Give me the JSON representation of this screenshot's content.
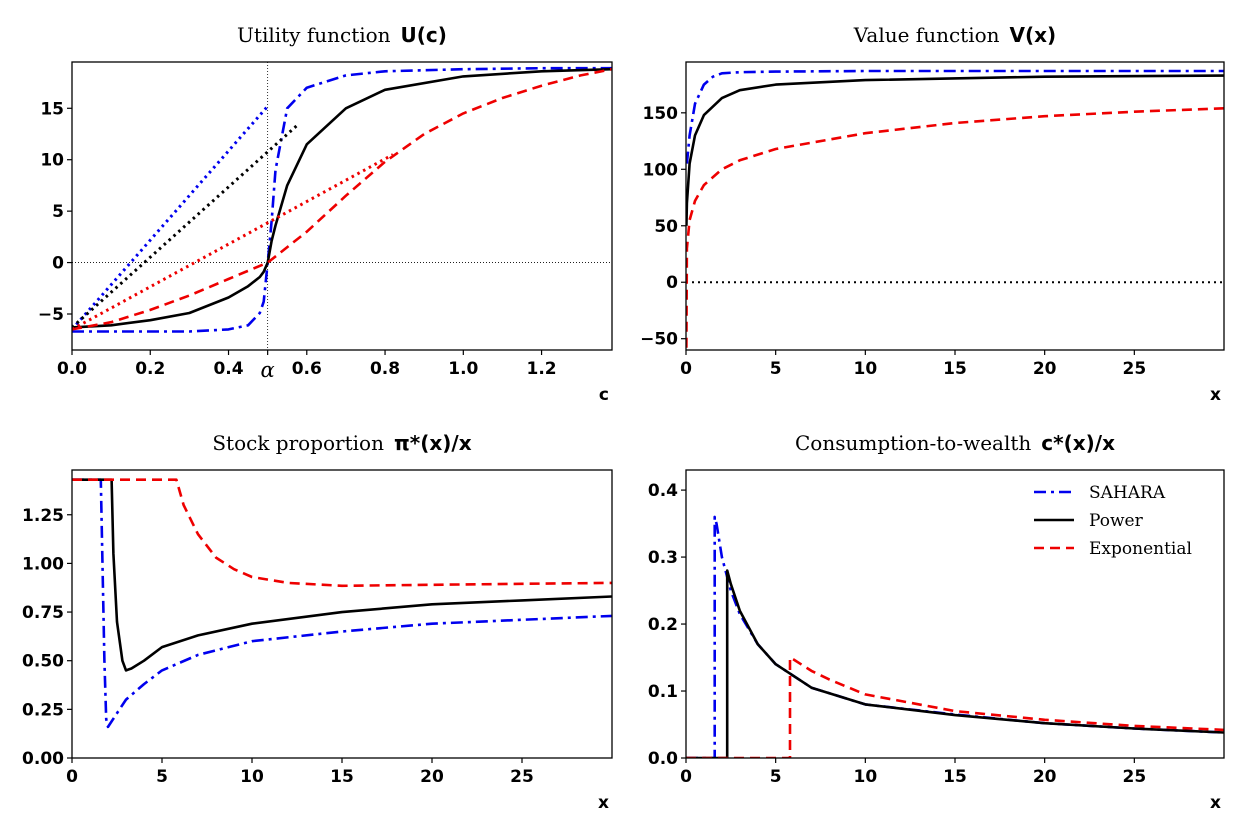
{
  "colors": {
    "SAHARA": "#0000ee",
    "Power": "#000000",
    "Exponential": "#ee0000"
  },
  "chart_data": [
    {
      "type": "line",
      "title": "Utility function",
      "title_math": "U(c)",
      "xlabel": "c",
      "xlim": [
        0,
        1.38
      ],
      "ylim": [
        -8.5,
        19.5
      ],
      "xticks": [
        0.0,
        0.2,
        0.4,
        0.6,
        0.8,
        1.0,
        1.2
      ],
      "xtick_labels": [
        "0.0",
        "0.2",
        "0.4",
        "0.6",
        "0.8",
        "1.0",
        "1.2"
      ],
      "yticks": [
        -5,
        0,
        5,
        10,
        15
      ],
      "ytick_labels": [
        "−5",
        "0",
        "5",
        "10",
        "15"
      ],
      "special_xtick": {
        "x": 0.5,
        "label": "α"
      },
      "reference_lines": [
        {
          "axis": "h",
          "value": 0
        },
        {
          "axis": "v",
          "value": 0.5
        }
      ],
      "series": [
        {
          "name": "SAHARA",
          "style": "dashdot",
          "x": [
            0,
            0.1,
            0.2,
            0.3,
            0.4,
            0.45,
            0.48,
            0.49,
            0.5,
            0.51,
            0.52,
            0.55,
            0.6,
            0.7,
            0.8,
            1.0,
            1.2,
            1.38
          ],
          "y": [
            -6.7,
            -6.7,
            -6.7,
            -6.7,
            -6.5,
            -6.1,
            -4.9,
            -3.8,
            0,
            4.0,
            9.0,
            15.0,
            17.0,
            18.2,
            18.6,
            18.8,
            18.9,
            18.9
          ]
        },
        {
          "name": "Power",
          "style": "solid",
          "x": [
            0,
            0.1,
            0.2,
            0.3,
            0.4,
            0.45,
            0.48,
            0.49,
            0.5,
            0.51,
            0.52,
            0.55,
            0.6,
            0.7,
            0.8,
            1.0,
            1.2,
            1.38
          ],
          "y": [
            -6.3,
            -6.1,
            -5.6,
            -4.9,
            -3.4,
            -2.3,
            -1.4,
            -0.9,
            0,
            2.1,
            3.6,
            7.5,
            11.5,
            15.0,
            16.8,
            18.1,
            18.6,
            18.8
          ]
        },
        {
          "name": "Exponential",
          "style": "dashed",
          "x": [
            0,
            0.1,
            0.2,
            0.3,
            0.4,
            0.5,
            0.6,
            0.7,
            0.8,
            0.9,
            1.0,
            1.1,
            1.2,
            1.3,
            1.38
          ],
          "y": [
            -6.5,
            -5.8,
            -4.6,
            -3.2,
            -1.6,
            0,
            3.0,
            6.5,
            9.8,
            12.5,
            14.5,
            16.0,
            17.2,
            18.2,
            18.8
          ]
        },
        {
          "name": "SAHARA tangent",
          "style": "dotted",
          "color_of": "SAHARA",
          "x": [
            0,
            0.5
          ],
          "y": [
            -6.5,
            15.2
          ]
        },
        {
          "name": "Power tangent",
          "style": "dotted",
          "color_of": "Power",
          "x": [
            0,
            0.58
          ],
          "y": [
            -6.3,
            13.5
          ]
        },
        {
          "name": "Exponential tangent",
          "style": "dotted",
          "color_of": "Exponential",
          "x": [
            0,
            0.82
          ],
          "y": [
            -6.5,
            10.5
          ]
        }
      ]
    },
    {
      "type": "line",
      "title": "Value function",
      "title_math": "V(x)",
      "xlabel": "x",
      "xlim": [
        0,
        30
      ],
      "ylim": [
        -60,
        195
      ],
      "xticks": [
        0,
        5,
        10,
        15,
        20,
        25
      ],
      "xtick_labels": [
        "0",
        "5",
        "10",
        "15",
        "20",
        "25"
      ],
      "yticks": [
        -50,
        0,
        50,
        100,
        150
      ],
      "ytick_labels": [
        "−50",
        "0",
        "50",
        "100",
        "150"
      ],
      "reference_lines": [
        {
          "axis": "h",
          "value": 0,
          "style": "dotted"
        }
      ],
      "series": [
        {
          "name": "SAHARA",
          "style": "dashdot",
          "x": [
            0.05,
            0.2,
            0.5,
            1,
            1.5,
            2,
            3,
            5,
            10,
            20,
            30
          ],
          "y": [
            105,
            130,
            158,
            175,
            182,
            185,
            186,
            186.5,
            187,
            187,
            187
          ]
        },
        {
          "name": "Power",
          "style": "solid",
          "x": [
            0.02,
            0.05,
            0.2,
            0.5,
            1,
            2,
            3,
            5,
            10,
            20,
            30
          ],
          "y": [
            50,
            70,
            105,
            130,
            148,
            163,
            170,
            175,
            179,
            182,
            183
          ]
        },
        {
          "name": "Exponential",
          "style": "dashed",
          "x": [
            0.02,
            0.05,
            0.2,
            0.5,
            1,
            2,
            3,
            5,
            10,
            15,
            20,
            25,
            30
          ],
          "y": [
            -58,
            30,
            55,
            72,
            86,
            100,
            108,
            118,
            132,
            141,
            147,
            151,
            154
          ]
        }
      ]
    },
    {
      "type": "line",
      "title": "Stock proportion",
      "title_math": "π*(x)/x",
      "xlabel": "x",
      "xlim": [
        0,
        30
      ],
      "ylim": [
        0,
        1.48
      ],
      "xticks": [
        0,
        5,
        10,
        15,
        20,
        25
      ],
      "xtick_labels": [
        "0",
        "5",
        "10",
        "15",
        "20",
        "25"
      ],
      "yticks": [
        0,
        0.25,
        0.5,
        0.75,
        1.0,
        1.25
      ],
      "ytick_labels": [
        "0.00",
        "0.25",
        "0.50",
        "0.75",
        "1.00",
        "1.25"
      ],
      "series": [
        {
          "name": "SAHARA",
          "style": "dashdot",
          "x": [
            0,
            1.6,
            1.65,
            1.8,
            1.9,
            2.0,
            2.5,
            3,
            4,
            5,
            7,
            10,
            15,
            20,
            25,
            30
          ],
          "y": [
            1.43,
            1.43,
            1.2,
            0.5,
            0.2,
            0.16,
            0.23,
            0.3,
            0.38,
            0.45,
            0.53,
            0.6,
            0.65,
            0.69,
            0.71,
            0.73
          ]
        },
        {
          "name": "Power",
          "style": "solid",
          "x": [
            0,
            2.2,
            2.3,
            2.5,
            2.8,
            3.0,
            3.3,
            4,
            5,
            7,
            10,
            15,
            20,
            25,
            30
          ],
          "y": [
            1.43,
            1.43,
            1.05,
            0.7,
            0.5,
            0.45,
            0.46,
            0.5,
            0.57,
            0.63,
            0.69,
            0.75,
            0.79,
            0.81,
            0.83
          ]
        },
        {
          "name": "Exponential",
          "style": "dashed",
          "x": [
            0,
            5.8,
            6.2,
            7,
            8,
            9,
            10,
            12,
            15,
            20,
            25,
            30
          ],
          "y": [
            1.43,
            1.43,
            1.3,
            1.15,
            1.03,
            0.97,
            0.93,
            0.9,
            0.885,
            0.89,
            0.895,
            0.9
          ]
        }
      ]
    },
    {
      "type": "line",
      "title": "Consumption-to-wealth",
      "title_math": "c*(x)/x",
      "xlabel": "x",
      "xlim": [
        0,
        30
      ],
      "ylim": [
        0,
        0.43
      ],
      "xticks": [
        0,
        5,
        10,
        15,
        20,
        25
      ],
      "xtick_labels": [
        "0",
        "5",
        "10",
        "15",
        "20",
        "25"
      ],
      "yticks": [
        0,
        0.1,
        0.2,
        0.3,
        0.4
      ],
      "ytick_labels": [
        "0.0",
        "0.1",
        "0.2",
        "0.3",
        "0.4"
      ],
      "legend": {
        "placement": "top-right",
        "entries": [
          "SAHARA",
          "Power",
          "Exponential"
        ]
      },
      "series": [
        {
          "name": "SAHARA",
          "style": "dashdot",
          "x": [
            0,
            1.6,
            1.6,
            1.7,
            2.0,
            2.5,
            3,
            4,
            5,
            7,
            10,
            15,
            20,
            25,
            30
          ],
          "y": [
            0,
            0,
            0.36,
            0.35,
            0.3,
            0.25,
            0.215,
            0.17,
            0.14,
            0.105,
            0.08,
            0.065,
            0.052,
            0.044,
            0.038
          ]
        },
        {
          "name": "Power",
          "style": "solid",
          "x": [
            0,
            2.3,
            2.3,
            2.5,
            3,
            4,
            5,
            7,
            10,
            15,
            20,
            25,
            30
          ],
          "y": [
            0,
            0,
            0.28,
            0.26,
            0.22,
            0.17,
            0.14,
            0.105,
            0.08,
            0.064,
            0.052,
            0.044,
            0.038
          ]
        },
        {
          "name": "Exponential",
          "style": "dashed",
          "x": [
            0,
            5.8,
            5.8,
            6,
            7,
            8,
            10,
            15,
            20,
            25,
            30
          ],
          "y": [
            0,
            0,
            0.15,
            0.147,
            0.13,
            0.117,
            0.095,
            0.07,
            0.057,
            0.048,
            0.042
          ]
        }
      ]
    }
  ]
}
